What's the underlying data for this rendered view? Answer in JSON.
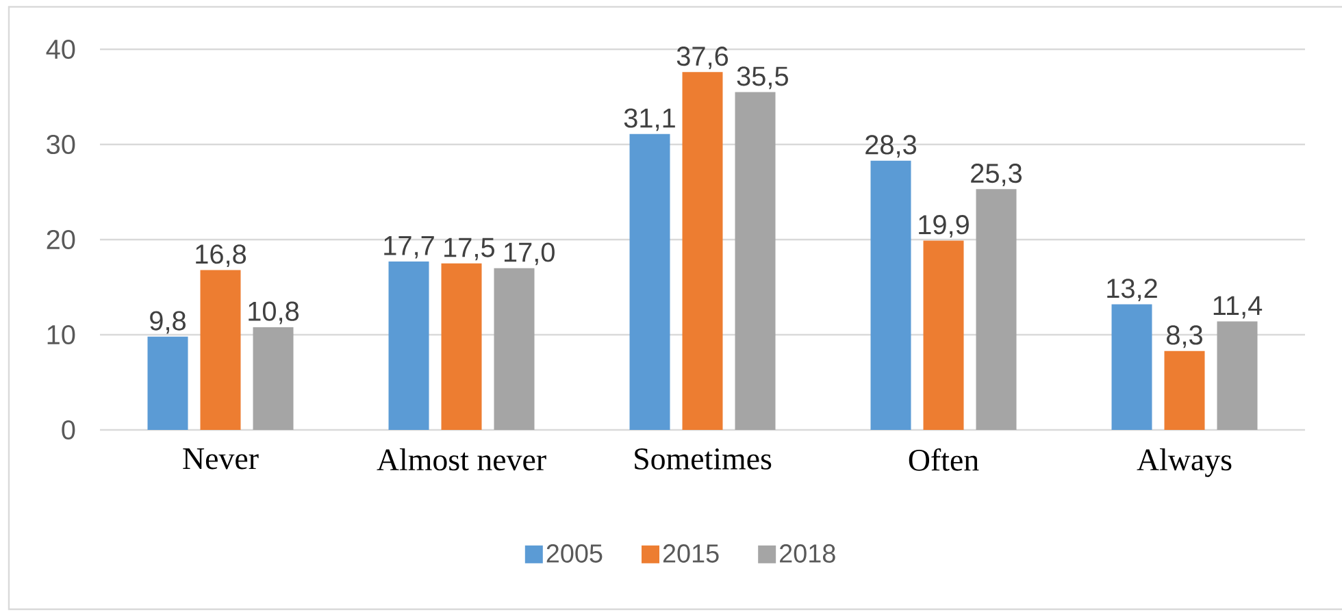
{
  "chart_data": {
    "type": "bar",
    "categories": [
      "Never",
      "Almost never",
      "Sometimes",
      "Often",
      "Always"
    ],
    "series": [
      {
        "name": "2005",
        "color": "#5b9bd5",
        "values": [
          9.8,
          17.7,
          31.1,
          28.3,
          13.2
        ],
        "value_labels": [
          "9,8",
          "17,7",
          "31,1",
          "28,3",
          "13,2"
        ]
      },
      {
        "name": "2015",
        "color": "#ed7d31",
        "values": [
          16.8,
          17.5,
          37.6,
          19.9,
          8.3
        ],
        "value_labels": [
          "16,8",
          "17,5",
          "37,6",
          "19,9",
          "8,3"
        ]
      },
      {
        "name": "2018",
        "color": "#a5a5a5",
        "values": [
          10.8,
          17.0,
          35.5,
          25.3,
          11.4
        ],
        "value_labels": [
          "10,8",
          "17,0",
          "35,5",
          "25,3",
          "11,4"
        ]
      }
    ],
    "ylim": [
      0,
      40
    ],
    "yticks": [
      0,
      10,
      20,
      30,
      40
    ],
    "grid": "y",
    "legend": "bottom"
  }
}
